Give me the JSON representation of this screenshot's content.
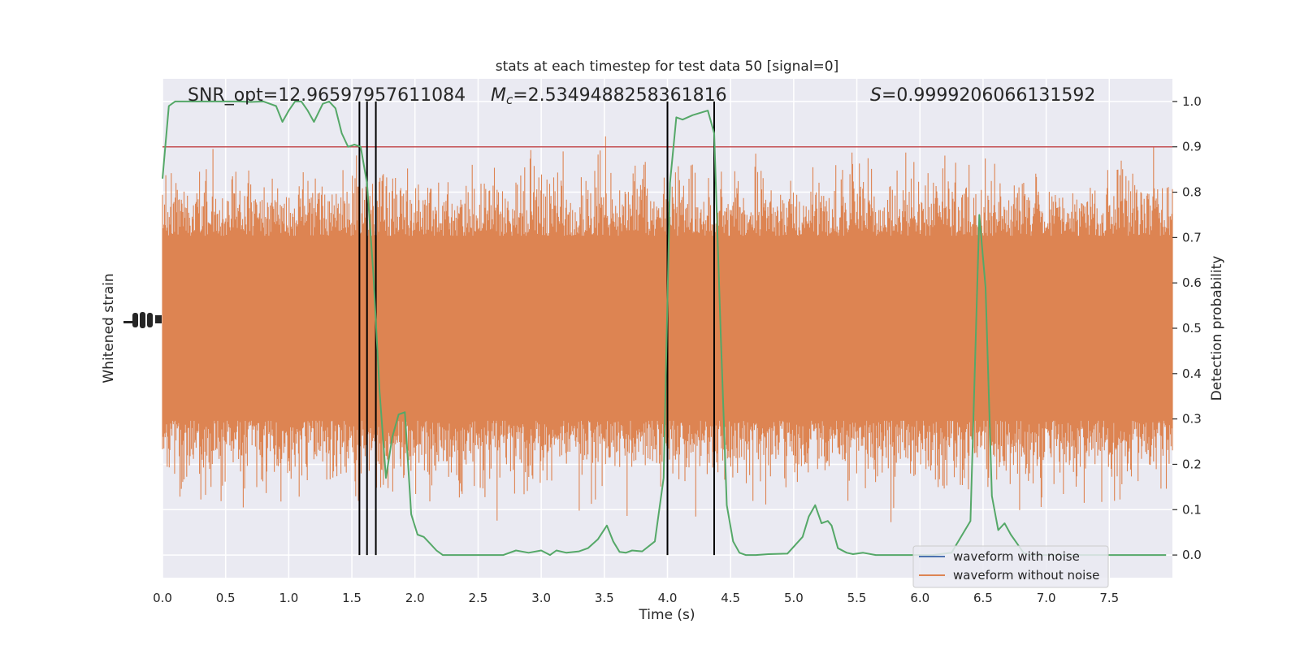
{
  "chart_data": {
    "type": "line",
    "title": "stats at each timestep for test data 50 [signal=0]",
    "xlabel": "Time (s)",
    "ylabel_left": "Whitened strain",
    "ylabel_right": "Detection probability",
    "xlim": [
      0,
      8
    ],
    "ylim_right": [
      -0.05,
      1.05
    ],
    "x_ticks": [
      0.0,
      0.5,
      1.0,
      1.5,
      2.0,
      2.5,
      3.0,
      3.5,
      4.0,
      4.5,
      5.0,
      5.5,
      6.0,
      6.5,
      7.0,
      7.5
    ],
    "x_tick_labels": [
      "0.0",
      "0.5",
      "1.0",
      "1.5",
      "2.0",
      "2.5",
      "3.0",
      "3.5",
      "4.0",
      "4.5",
      "5.0",
      "5.5",
      "6.0",
      "6.5",
      "7.0",
      "7.5"
    ],
    "y_right_ticks": [
      0.0,
      0.1,
      0.2,
      0.3,
      0.4,
      0.5,
      0.6,
      0.7,
      0.8,
      0.9,
      1.0
    ],
    "y_right_tick_labels": [
      "0.0",
      "0.1",
      "0.2",
      "0.3",
      "0.4",
      "0.5",
      "0.6",
      "0.7",
      "0.8",
      "0.9",
      "1.0"
    ],
    "grid": true,
    "legend_position": "lower-right",
    "annotations": {
      "snr": "SNR_opt=12.96597957611084",
      "mc_symbol": "M",
      "mc_sub": "c",
      "mc_value": "=2.5349488258361816",
      "s_symbol": "S",
      "s_value": "=0.9999206066131592"
    },
    "threshold": 0.9,
    "vertical_lines": [
      1.56,
      1.62,
      1.69,
      4.0,
      4.37
    ],
    "series": [
      {
        "name": "waveform with noise",
        "color": "#4c72b0",
        "axis": "left"
      },
      {
        "name": "waveform without noise",
        "color": "#dd8452",
        "axis": "left",
        "band_center": 0.5,
        "band_halfwidth": 0.2
      },
      {
        "axis": "right",
        "color": "#55a868",
        "x": [
          0.0,
          0.05,
          0.1,
          0.2,
          0.3,
          0.4,
          0.5,
          0.6,
          0.7,
          0.8,
          0.9,
          0.95,
          1.0,
          1.05,
          1.1,
          1.15,
          1.2,
          1.27,
          1.32,
          1.37,
          1.42,
          1.47,
          1.52,
          1.57,
          1.62,
          1.67,
          1.72,
          1.77,
          1.82,
          1.87,
          1.92,
          1.97,
          2.02,
          2.07,
          2.12,
          2.17,
          2.22,
          2.27,
          2.32,
          2.4,
          2.5,
          2.6,
          2.7,
          2.8,
          2.9,
          3.0,
          3.07,
          3.12,
          3.2,
          3.3,
          3.37,
          3.45,
          3.52,
          3.57,
          3.62,
          3.67,
          3.72,
          3.8,
          3.9,
          3.97,
          4.02,
          4.07,
          4.12,
          4.2,
          4.32,
          4.37,
          4.42,
          4.47,
          4.52,
          4.57,
          4.62,
          4.7,
          4.8,
          4.95,
          5.07,
          5.12,
          5.17,
          5.22,
          5.27,
          5.3,
          5.35,
          5.42,
          5.47,
          5.55,
          5.65,
          5.8,
          5.95,
          6.1,
          6.25,
          6.4,
          6.47,
          6.52,
          6.57,
          6.62,
          6.67,
          6.72,
          6.77,
          6.82,
          6.87,
          6.92,
          7.0,
          7.1,
          7.3,
          7.5,
          7.7,
          7.95
        ],
        "y": [
          0.83,
          0.99,
          1.0,
          1.0,
          1.0,
          1.0,
          1.0,
          1.0,
          0.999,
          1.0,
          0.99,
          0.955,
          0.98,
          1.0,
          1.0,
          0.98,
          0.955,
          0.995,
          1.0,
          0.985,
          0.93,
          0.9,
          0.905,
          0.9,
          0.82,
          0.62,
          0.36,
          0.17,
          0.26,
          0.31,
          0.315,
          0.09,
          0.045,
          0.04,
          0.025,
          0.01,
          0.0,
          0.0,
          0.0,
          0.0,
          0.0,
          0.0,
          0.0,
          0.01,
          0.005,
          0.01,
          0.0,
          0.01,
          0.005,
          0.008,
          0.015,
          0.035,
          0.065,
          0.03,
          0.007,
          0.005,
          0.01,
          0.008,
          0.03,
          0.17,
          0.82,
          0.965,
          0.96,
          0.97,
          0.98,
          0.93,
          0.5,
          0.11,
          0.03,
          0.005,
          0.0,
          0.0,
          0.002,
          0.003,
          0.04,
          0.085,
          0.11,
          0.07,
          0.075,
          0.065,
          0.015,
          0.005,
          0.002,
          0.005,
          0.0,
          0.0,
          0.0,
          0.0,
          0.005,
          0.075,
          0.75,
          0.59,
          0.13,
          0.055,
          0.07,
          0.045,
          0.025,
          0.005,
          0.0,
          0.0,
          0.0,
          0.0,
          0.0,
          0.0,
          0.0,
          0.0
        ]
      }
    ]
  },
  "colors": {
    "plot_background": "#eaeaf2",
    "grid": "#ffffff",
    "threshold_line": "#c44e52",
    "vertical_lines": "#000000",
    "text": "#262626"
  }
}
